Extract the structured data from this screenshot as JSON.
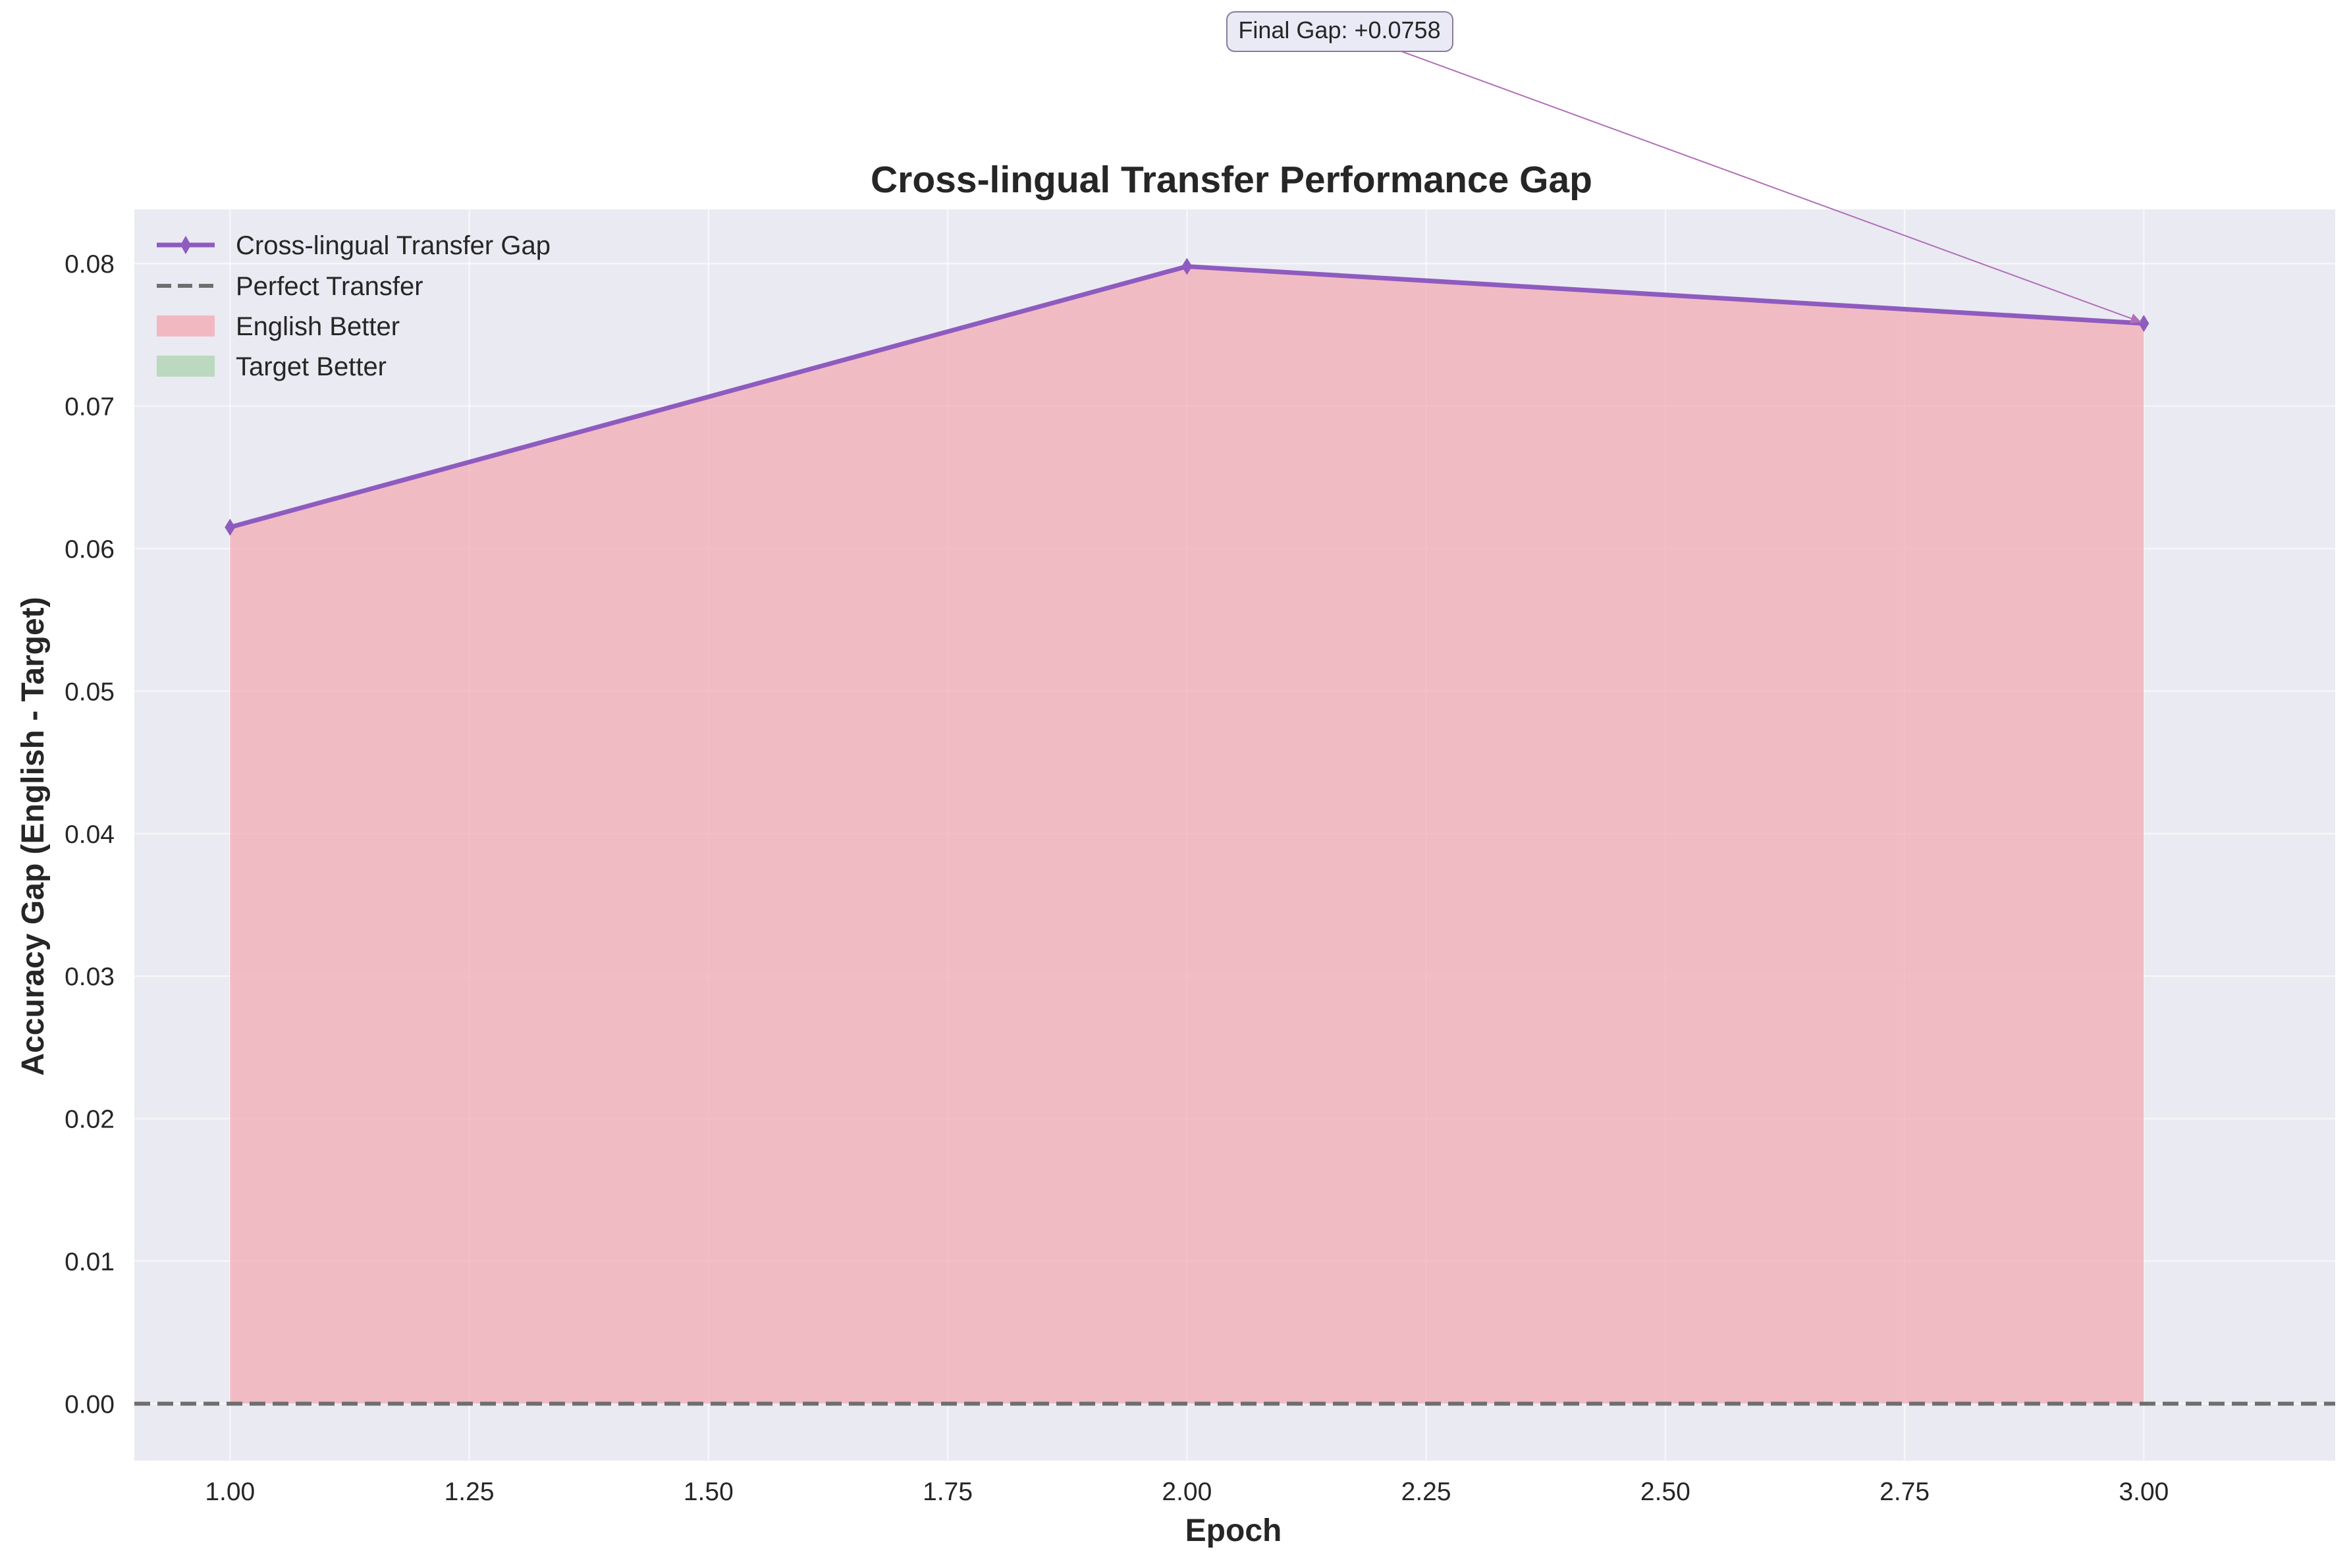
{
  "chart_data": {
    "type": "area",
    "title": "Cross-lingual Transfer Performance Gap",
    "xlabel": "Epoch",
    "ylabel": "Accuracy Gap (English - Target)",
    "xlim": [
      0.9,
      3.2
    ],
    "ylim": [
      -0.004,
      0.0838
    ],
    "x_ticks": [
      "1.00",
      "1.25",
      "1.50",
      "1.75",
      "2.00",
      "2.25",
      "2.50",
      "2.75",
      "3.00"
    ],
    "y_ticks": [
      "0.00",
      "0.01",
      "0.02",
      "0.03",
      "0.04",
      "0.05",
      "0.06",
      "0.07",
      "0.08"
    ],
    "x": [
      1,
      2,
      3
    ],
    "series": [
      {
        "name": "Cross-lingual Transfer Gap",
        "values": [
          0.0615,
          0.0798,
          0.0758
        ],
        "color": "#8e5bbf",
        "marker": "diamond"
      }
    ],
    "reference_line": {
      "name": "Perfect Transfer",
      "y": 0,
      "style": "dashed",
      "color": "#6e6e6e"
    },
    "fills": [
      {
        "name": "English Better",
        "color": "#f4a7b0"
      },
      {
        "name": "Target Better",
        "color": "#a9d3ae"
      }
    ],
    "annotation": {
      "text": "Final Gap: +0.0758",
      "target_x": 3,
      "target_y": 0.0758
    },
    "legend_position": "upper-left",
    "grid": true,
    "background": "#eaeaf2"
  }
}
